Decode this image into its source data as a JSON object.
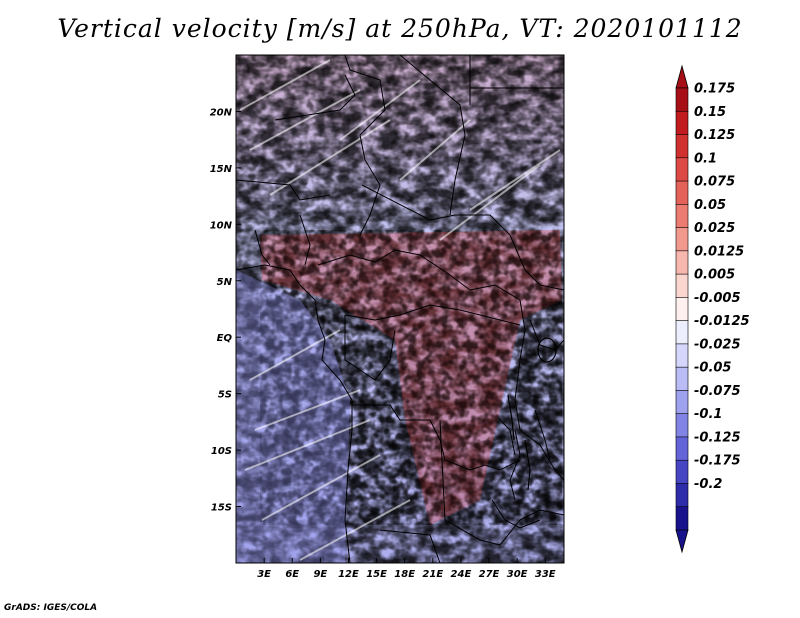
{
  "title": "Vertical velocity [m/s] at 250hPa, VT: 2020101112",
  "credit": "GrADS: IGES/COLA",
  "map": {
    "variable": "Vertical velocity",
    "units": "m/s",
    "level": "250hPa",
    "valid_time": "2020101112",
    "lon_range": [
      0,
      35
    ],
    "lat_range": [
      -20,
      25
    ],
    "lon_ticks": [
      "3E",
      "6E",
      "9E",
      "12E",
      "15E",
      "18E",
      "21E",
      "24E",
      "27E",
      "30E",
      "33E"
    ],
    "lon_tick_values": [
      3,
      6,
      9,
      12,
      15,
      18,
      21,
      24,
      27,
      30,
      33
    ],
    "lat_ticks": [
      "20N",
      "15N",
      "10N",
      "5N",
      "EQ",
      "5S",
      "10S",
      "15S"
    ],
    "lat_tick_values": [
      20,
      15,
      10,
      5,
      0,
      -5,
      -10,
      -15
    ]
  },
  "colorbar": {
    "labels": [
      "0.175",
      "0.15",
      "0.125",
      "0.1",
      "0.075",
      "0.05",
      "0.025",
      "0.0125",
      "0.005",
      "-0.005",
      "-0.0125",
      "-0.025",
      "-0.05",
      "-0.075",
      "-0.1",
      "-0.125",
      "-0.175",
      "-0.2"
    ],
    "colors": [
      "#a50f15",
      "#c11b20",
      "#d0302e",
      "#dd4a45",
      "#e5625a",
      "#ec7c72",
      "#f2998e",
      "#f7b7ae",
      "#fbd6cf",
      "#fdf0ee",
      "#eceefe",
      "#d4d7fb",
      "#b9bcf5",
      "#9ea1ee",
      "#8184e5",
      "#6364d8",
      "#4646c4",
      "#2d2caa",
      "#18138c"
    ],
    "top_arrow_color": "#a50f15",
    "bottom_arrow_color": "#18138c"
  }
}
